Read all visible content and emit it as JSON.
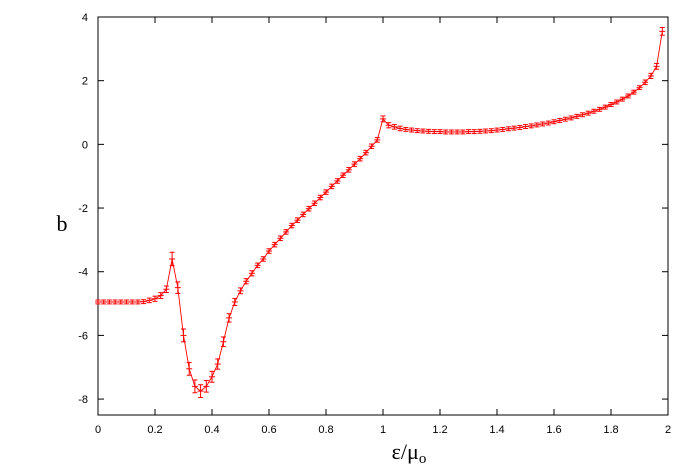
{
  "chart_data": {
    "type": "line",
    "title": "",
    "xlabel_base": "ε/μ",
    "xlabel_sub": "o",
    "ylabel": "b",
    "xlim": [
      0,
      2
    ],
    "ylim": [
      -8.5,
      4
    ],
    "x_ticks": [
      0,
      0.2,
      0.4,
      0.6,
      0.8,
      1,
      1.2,
      1.4,
      1.6,
      1.8,
      2
    ],
    "x_tick_labels": [
      "0",
      "0.2",
      "0.4",
      "0.6",
      "0.8",
      "1",
      "1.2",
      "1.4",
      "1.6",
      "1.8",
      "2"
    ],
    "y_ticks": [
      -8,
      -6,
      -4,
      -2,
      0,
      2,
      4
    ],
    "y_tick_labels": [
      "-8",
      "-6",
      "-4",
      "-2",
      "0",
      "2",
      "4"
    ],
    "grid": false,
    "legend": "none",
    "series_color": "#ff0000",
    "series": [
      {
        "x": [
          0.0,
          0.02,
          0.04,
          0.06,
          0.08,
          0.1,
          0.12,
          0.14,
          0.16,
          0.18,
          0.2,
          0.22,
          0.24,
          0.26,
          0.28,
          0.3,
          0.32,
          0.34,
          0.36,
          0.38,
          0.4,
          0.42,
          0.44,
          0.46,
          0.48,
          0.5,
          0.52,
          0.54,
          0.56,
          0.58,
          0.6,
          0.62,
          0.64,
          0.66,
          0.68,
          0.7,
          0.72,
          0.74,
          0.76,
          0.78,
          0.8,
          0.82,
          0.84,
          0.86,
          0.88,
          0.9,
          0.92,
          0.94,
          0.96,
          0.98,
          1.0,
          1.02,
          1.04,
          1.06,
          1.08,
          1.1,
          1.12,
          1.14,
          1.16,
          1.18,
          1.2,
          1.22,
          1.24,
          1.26,
          1.28,
          1.3,
          1.32,
          1.34,
          1.36,
          1.38,
          1.4,
          1.42,
          1.44,
          1.46,
          1.48,
          1.5,
          1.52,
          1.54,
          1.56,
          1.58,
          1.6,
          1.62,
          1.64,
          1.66,
          1.68,
          1.7,
          1.72,
          1.74,
          1.76,
          1.78,
          1.8,
          1.82,
          1.84,
          1.86,
          1.88,
          1.9,
          1.92,
          1.94,
          1.96,
          1.98
        ],
        "y": [
          -4.95,
          -4.95,
          -4.95,
          -4.95,
          -4.95,
          -4.95,
          -4.95,
          -4.95,
          -4.94,
          -4.9,
          -4.85,
          -4.75,
          -4.55,
          -3.6,
          -4.5,
          -6.0,
          -7.05,
          -7.6,
          -7.75,
          -7.6,
          -7.3,
          -6.9,
          -6.2,
          -5.45,
          -4.95,
          -4.6,
          -4.3,
          -4.05,
          -3.8,
          -3.6,
          -3.35,
          -3.15,
          -2.95,
          -2.75,
          -2.55,
          -2.38,
          -2.2,
          -2.02,
          -1.85,
          -1.67,
          -1.5,
          -1.32,
          -1.15,
          -0.97,
          -0.8,
          -0.62,
          -0.45,
          -0.26,
          -0.06,
          0.14,
          0.8,
          0.6,
          0.55,
          0.5,
          0.47,
          0.45,
          0.43,
          0.42,
          0.41,
          0.4,
          0.4,
          0.39,
          0.39,
          0.39,
          0.39,
          0.4,
          0.4,
          0.41,
          0.42,
          0.43,
          0.45,
          0.47,
          0.49,
          0.51,
          0.53,
          0.56,
          0.58,
          0.61,
          0.64,
          0.67,
          0.71,
          0.75,
          0.79,
          0.83,
          0.88,
          0.93,
          0.98,
          1.04,
          1.1,
          1.17,
          1.25,
          1.33,
          1.42,
          1.52,
          1.64,
          1.78,
          1.95,
          2.15,
          2.45,
          3.55
        ],
        "yerr": [
          0.03,
          0.03,
          0.03,
          0.03,
          0.03,
          0.03,
          0.03,
          0.03,
          0.03,
          0.04,
          0.05,
          0.06,
          0.07,
          0.18,
          0.15,
          0.17,
          0.17,
          0.17,
          0.17,
          0.15,
          0.14,
          0.13,
          0.12,
          0.1,
          0.08,
          0.06,
          0.05,
          0.05,
          0.04,
          0.04,
          0.04,
          0.04,
          0.04,
          0.04,
          0.04,
          0.04,
          0.04,
          0.04,
          0.04,
          0.04,
          0.04,
          0.04,
          0.04,
          0.04,
          0.04,
          0.04,
          0.04,
          0.04,
          0.04,
          0.04,
          0.06,
          0.05,
          0.04,
          0.04,
          0.03,
          0.03,
          0.03,
          0.03,
          0.03,
          0.03,
          0.03,
          0.03,
          0.03,
          0.03,
          0.03,
          0.03,
          0.03,
          0.03,
          0.03,
          0.03,
          0.03,
          0.03,
          0.03,
          0.03,
          0.03,
          0.03,
          0.03,
          0.03,
          0.03,
          0.03,
          0.03,
          0.03,
          0.03,
          0.03,
          0.03,
          0.03,
          0.03,
          0.03,
          0.03,
          0.03,
          0.03,
          0.03,
          0.03,
          0.03,
          0.03,
          0.03,
          0.04,
          0.05,
          0.06,
          0.09
        ]
      }
    ]
  }
}
